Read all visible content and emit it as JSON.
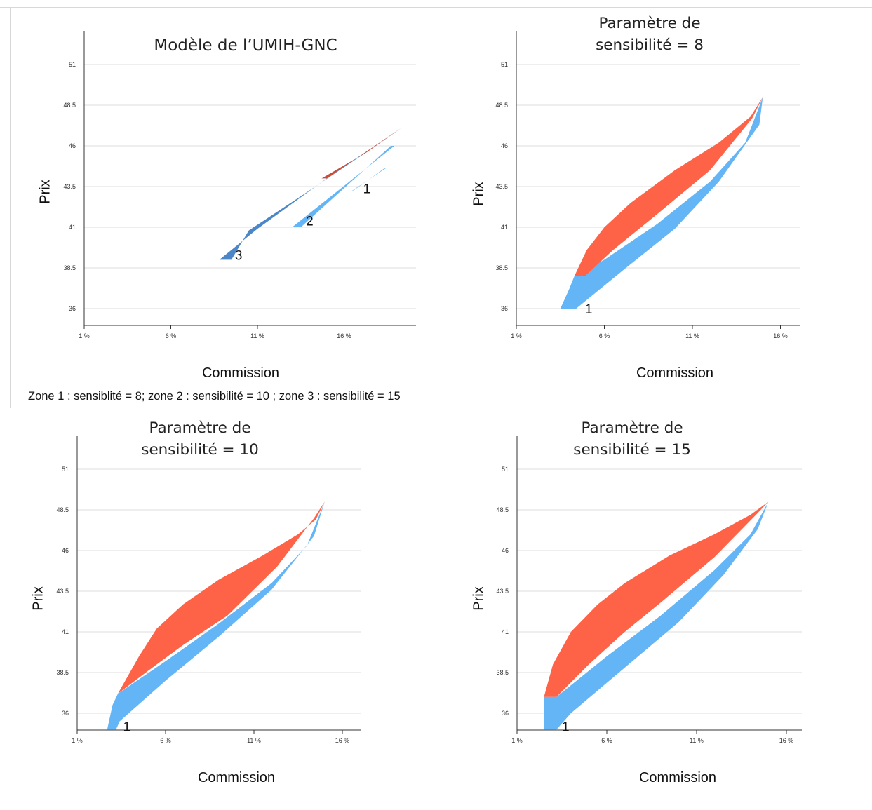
{
  "note": "Zone 1 : sensiblité = 8; zone 2 : sensibilité = 10 ; zone 3 : sensibilité = 15",
  "colors": {
    "red": "#ff6347",
    "light_blue": "#64b5f6",
    "dark_blue": "#4a86c8",
    "dark_red": "#cc4b37"
  },
  "chart_data": [
    {
      "type": "area",
      "title": "Modèle de l’UMIH-GNC",
      "xlabel": "Commission",
      "ylabel": "Prix",
      "xlim": [
        1,
        20
      ],
      "ylim": [
        35,
        53
      ],
      "xticks": [
        1,
        6,
        11,
        16
      ],
      "xtick_labels": [
        "1 %",
        "6 %",
        "11 %",
        "16 %"
      ],
      "yticks": [
        36,
        38.5,
        41,
        43.5,
        46,
        48.5,
        51
      ],
      "ytick_labels": [
        "36",
        "38.5",
        "41",
        "43.5",
        "46",
        "48.5",
        "51"
      ],
      "grid": true,
      "series": [
        {
          "color": "light_blue",
          "points": [
            [
              16.4,
              43.2
            ],
            [
              18.5,
              44.7
            ],
            [
              18.3,
              44.6
            ],
            [
              16.6,
              43.3
            ]
          ]
        },
        {
          "color": "light_blue",
          "points": [
            [
              13.0,
              41.0
            ],
            [
              18.9,
              46.0
            ],
            [
              18.7,
              46.0
            ],
            [
              13.5,
              41.0
            ]
          ]
        },
        {
          "color": "dark_blue",
          "points": [
            [
              8.8,
              39.0
            ],
            [
              11.0,
              40.9
            ],
            [
              15.0,
              44.0
            ],
            [
              17.5,
              45.8
            ],
            [
              19.3,
              47.1
            ],
            [
              17.0,
              45.4
            ],
            [
              13.5,
              42.9
            ],
            [
              10.5,
              40.8
            ],
            [
              9.5,
              39.0
            ]
          ]
        },
        {
          "color": "dark_red",
          "points": [
            [
              14.7,
              44.0
            ],
            [
              17.3,
              45.6
            ],
            [
              19.3,
              47.1
            ],
            [
              15.0,
              44.0
            ]
          ]
        }
      ],
      "annotations": [
        {
          "text": "1",
          "x": 17.1,
          "y": 43.4
        },
        {
          "text": "2",
          "x": 13.8,
          "y": 41.4
        },
        {
          "text": "3",
          "x": 9.7,
          "y": 39.3
        }
      ]
    },
    {
      "type": "area",
      "title": "Paramètre de sensibilité = 8",
      "xlabel": "Commission",
      "ylabel": "Prix",
      "xlim": [
        1,
        17
      ],
      "ylim": [
        35,
        53
      ],
      "xticks": [
        1,
        6,
        11,
        16
      ],
      "xtick_labels": [
        "1 %",
        "6 %",
        "11 %",
        "16 %"
      ],
      "yticks": [
        36,
        38.5,
        41,
        43.5,
        46,
        48.5,
        51
      ],
      "ytick_labels": [
        "36",
        "38.5",
        "41",
        "43.5",
        "46",
        "48.5",
        "51"
      ],
      "grid": true,
      "series": [
        {
          "color": "light_blue",
          "points": [
            [
              3.5,
              36.0
            ],
            [
              4.0,
              37.2
            ],
            [
              4.3,
              38.0
            ],
            [
              6.0,
              39.0
            ],
            [
              9.0,
              41.2
            ],
            [
              12.0,
              43.8
            ],
            [
              14.0,
              46.2
            ],
            [
              15.0,
              49.0
            ],
            [
              14.8,
              47.3
            ],
            [
              12.5,
              43.8
            ],
            [
              10.0,
              40.9
            ],
            [
              7.0,
              38.3
            ],
            [
              4.4,
              36.0
            ]
          ]
        },
        {
          "color": "red",
          "points": [
            [
              4.3,
              38.0
            ],
            [
              5.0,
              39.6
            ],
            [
              6.0,
              41.0
            ],
            [
              7.5,
              42.5
            ],
            [
              10.0,
              44.5
            ],
            [
              12.5,
              46.2
            ],
            [
              14.3,
              47.8
            ],
            [
              15.0,
              49.0
            ],
            [
              14.4,
              47.7
            ],
            [
              12.0,
              44.5
            ],
            [
              9.0,
              41.8
            ],
            [
              6.5,
              39.6
            ],
            [
              4.9,
              38.0
            ]
          ]
        }
      ],
      "annotations": [
        {
          "text": "1",
          "x": 4.9,
          "y": 36.0
        }
      ]
    },
    {
      "type": "area",
      "title": "Paramètre de sensibilité = 10",
      "xlabel": "Commission",
      "ylabel": "Prix",
      "xlim": [
        1,
        17
      ],
      "ylim": [
        35,
        53
      ],
      "xticks": [
        1,
        6,
        11,
        16
      ],
      "xtick_labels": [
        "1 %",
        "6 %",
        "11 %",
        "16 %"
      ],
      "yticks": [
        36,
        38.5,
        41,
        43.5,
        46,
        48.5,
        51
      ],
      "ytick_labels": [
        "36",
        "38.5",
        "41",
        "43.5",
        "46",
        "48.5",
        "51"
      ],
      "grid": true,
      "series": [
        {
          "color": "light_blue",
          "points": [
            [
              2.7,
              35.0
            ],
            [
              3.0,
              36.5
            ],
            [
              3.3,
              37.2
            ],
            [
              6.0,
              39.2
            ],
            [
              9.0,
              41.5
            ],
            [
              12.0,
              44.0
            ],
            [
              14.0,
              46.3
            ],
            [
              15.0,
              49.0
            ],
            [
              14.4,
              46.9
            ],
            [
              12.0,
              43.6
            ],
            [
              9.0,
              40.7
            ],
            [
              6.0,
              38.0
            ],
            [
              3.4,
              35.5
            ],
            [
              3.2,
              35.0
            ]
          ]
        },
        {
          "color": "red",
          "points": [
            [
              3.3,
              37.2
            ],
            [
              4.5,
              39.5
            ],
            [
              5.5,
              41.2
            ],
            [
              7.0,
              42.7
            ],
            [
              9.0,
              44.2
            ],
            [
              11.5,
              45.7
            ],
            [
              13.5,
              47.0
            ],
            [
              14.5,
              47.9
            ],
            [
              15.0,
              49.0
            ],
            [
              14.4,
              48.0
            ],
            [
              12.3,
              45.0
            ],
            [
              9.5,
              42.0
            ],
            [
              7.0,
              40.2
            ],
            [
              5.0,
              38.6
            ]
          ]
        }
      ],
      "annotations": [
        {
          "text": "1",
          "x": 3.6,
          "y": 35.2
        }
      ]
    },
    {
      "type": "area",
      "title": "Paramètre de sensibilité = 15",
      "xlabel": "Commission",
      "ylabel": "Prix",
      "xlim": [
        1,
        17
      ],
      "ylim": [
        35,
        53
      ],
      "xticks": [
        1,
        6,
        11,
        16
      ],
      "xtick_labels": [
        "1 %",
        "6 %",
        "11 %",
        "16 %"
      ],
      "yticks": [
        36,
        38.5,
        41,
        43.5,
        46,
        48.5,
        51
      ],
      "ytick_labels": [
        "36",
        "38.5",
        "41",
        "43.5",
        "46",
        "48.5",
        "51"
      ],
      "grid": true,
      "series": [
        {
          "color": "light_blue",
          "points": [
            [
              2.5,
              35.0
            ],
            [
              2.5,
              37.0
            ],
            [
              3.2,
              37.0
            ],
            [
              6.0,
              39.5
            ],
            [
              9.0,
              42.0
            ],
            [
              12.0,
              44.8
            ],
            [
              14.0,
              47.0
            ],
            [
              15.0,
              49.0
            ],
            [
              14.4,
              47.3
            ],
            [
              12.5,
              44.5
            ],
            [
              10.0,
              41.6
            ],
            [
              7.0,
              38.8
            ],
            [
              4.0,
              36.0
            ],
            [
              3.2,
              35.0
            ]
          ]
        },
        {
          "color": "red",
          "points": [
            [
              2.5,
              37.0
            ],
            [
              3.0,
              39.0
            ],
            [
              4.0,
              41.0
            ],
            [
              5.5,
              42.7
            ],
            [
              7.0,
              44.0
            ],
            [
              9.5,
              45.7
            ],
            [
              12.0,
              47.0
            ],
            [
              14.0,
              48.2
            ],
            [
              15.0,
              49.0
            ],
            [
              14.4,
              48.3
            ],
            [
              12.0,
              45.6
            ],
            [
              9.0,
              42.8
            ],
            [
              7.0,
              41.0
            ],
            [
              5.0,
              39.0
            ],
            [
              3.2,
              37.0
            ]
          ]
        }
      ],
      "annotations": [
        {
          "text": "1",
          "x": 3.5,
          "y": 35.2
        }
      ]
    }
  ]
}
